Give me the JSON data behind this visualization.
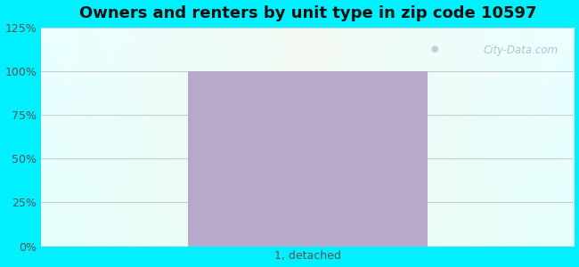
{
  "title": "Owners and renters by unit type in zip code 10597",
  "categories": [
    "1, detached"
  ],
  "values": [
    100
  ],
  "bar_color": "#b8a8cc",
  "bar_width": 0.45,
  "ylim": [
    0,
    125
  ],
  "yticks": [
    0,
    25,
    50,
    75,
    100,
    125
  ],
  "yticklabels": [
    "0%",
    "25%",
    "50%",
    "75%",
    "100%",
    "125%"
  ],
  "title_fontsize": 13,
  "tick_fontsize": 9,
  "bg_outer_color": "#00f0ff",
  "bg_center_color": "#eaf8ea",
  "bg_right_color": "#e0f5ec",
  "watermark_text": "City-Data.com",
  "watermark_color": "#b0bcc4",
  "tick_color": "#555555",
  "grid_color": "#cccccc",
  "title_color": "#111111"
}
